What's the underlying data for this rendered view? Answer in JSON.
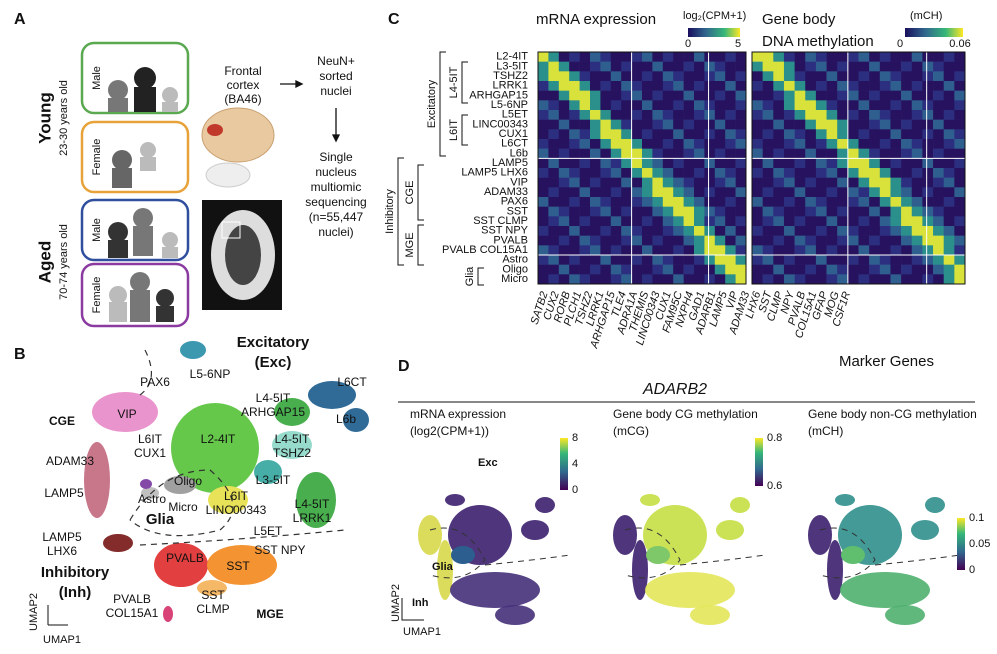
{
  "panel_a": {
    "label": "A",
    "young": {
      "title": "Young",
      "ages": "23-30 years old"
    },
    "aged": {
      "title": "Aged",
      "ages": "70-74 years old"
    },
    "sexes": [
      "Male",
      "Female",
      "Male",
      "Female"
    ],
    "tissue": [
      "Frontal",
      "cortex",
      "(BA46)"
    ],
    "sorting": [
      "NeuN+",
      "sorted",
      "nuclei"
    ],
    "sequencing": [
      "Single",
      "nucleus",
      "multiomic",
      "sequencing",
      "(n=55,447",
      "nuclei)"
    ]
  },
  "panel_b": {
    "label": "B",
    "excitatory": [
      "Excitatory",
      "(Exc)"
    ],
    "inhibitory": [
      "Inhibitory",
      "(Inh)"
    ],
    "cge": "CGE",
    "mge": "MGE",
    "glia": "Glia",
    "umap2": "UMAP2",
    "umap1": "UMAP1",
    "clusters": [
      [
        "L5-6NP"
      ],
      [
        "PAX6"
      ],
      [
        "VIP"
      ],
      [
        "L6IT",
        "CUX1"
      ],
      [
        "ADAM33"
      ],
      [
        "LAMP5"
      ],
      [
        "LAMP5",
        "LHX6"
      ],
      [
        "L2-4IT"
      ],
      [
        "L4-5IT",
        "ARHGAP15"
      ],
      [
        "L4-5IT",
        "TSHZ2"
      ],
      [
        "L3-5IT"
      ],
      [
        "L4-5IT",
        "LRRK1"
      ],
      [
        "L6CT"
      ],
      [
        "L6b"
      ],
      [
        "Oligo"
      ],
      [
        "Astro"
      ],
      [
        "Micro"
      ],
      [
        "L6IT",
        "LINC00343"
      ],
      [
        "L5ET"
      ],
      [
        "SST NPY"
      ],
      [
        "PVALB"
      ],
      [
        "SST"
      ],
      [
        "SST",
        "CLMP"
      ],
      [
        "PVALB",
        "COL15A1"
      ]
    ]
  },
  "panel_c": {
    "label": "C",
    "mrna_title": "mRNA expression",
    "mrna_unit": "log₂(CPM+1)",
    "mrna_scale": [
      "0",
      "5"
    ],
    "meth_title": [
      "Gene body",
      "DNA methylation"
    ],
    "meth_unit": "(mCH)",
    "meth_scale": [
      "0",
      "0.06"
    ],
    "rows": [
      "L2-4IT",
      "L3-5IT",
      "TSHZ2",
      "LRRK1",
      "ARHGAP15",
      "L5-6NP",
      "L5ET",
      "LINC00343",
      "CUX1",
      "L6CT",
      "L6b",
      "LAMP5",
      "LAMP5 LHX6",
      "VIP",
      "ADAM33",
      "PAX6",
      "SST",
      "SST CLMP",
      "SST NPY",
      "PVALB",
      "PVALB COL15A1",
      "Astro",
      "Oligo",
      "Micro"
    ],
    "groups": [
      "Excitatory",
      "L4-5IT",
      "L6IT",
      "Inhibitory",
      "CGE",
      "MGE",
      "Glia"
    ],
    "genes": [
      "SATB2",
      "CUX2",
      "RORB",
      "PLCH1",
      "TSHZ2",
      "LRRK1",
      "ARHGAP15",
      "TLE4",
      "ADRA1A",
      "THEMIS",
      "LINC00343",
      "CUX1",
      "FAM95C",
      "NXPH4",
      "GAD1",
      "ADARB1",
      "LAMP5",
      "VIP",
      "ADAM33",
      "LHX6",
      "SST",
      "CLMP",
      "NPY",
      "PVALB",
      "COL15A1",
      "GFAP",
      "MOG",
      "CSF1R"
    ],
    "genes_title": "Marker Genes"
  },
  "panel_d": {
    "label": "D",
    "gene": "ADARB2",
    "maps": [
      {
        "title": [
          "mRNA expression",
          "(log2(CPM+1))"
        ],
        "scale": [
          "8",
          "4",
          "0"
        ]
      },
      {
        "title": [
          "Gene body CG methylation",
          "(mCG)"
        ],
        "scale": [
          "0.8",
          "0.6"
        ]
      },
      {
        "title": [
          "Gene body non-CG methylation",
          "(mCH)"
        ],
        "scale": [
          "0.1",
          "0.05",
          "0"
        ]
      }
    ],
    "exc": "Exc",
    "glia": "Glia",
    "inh": "Inh",
    "umap2": "UMAP2",
    "umap1": "UMAP1"
  }
}
